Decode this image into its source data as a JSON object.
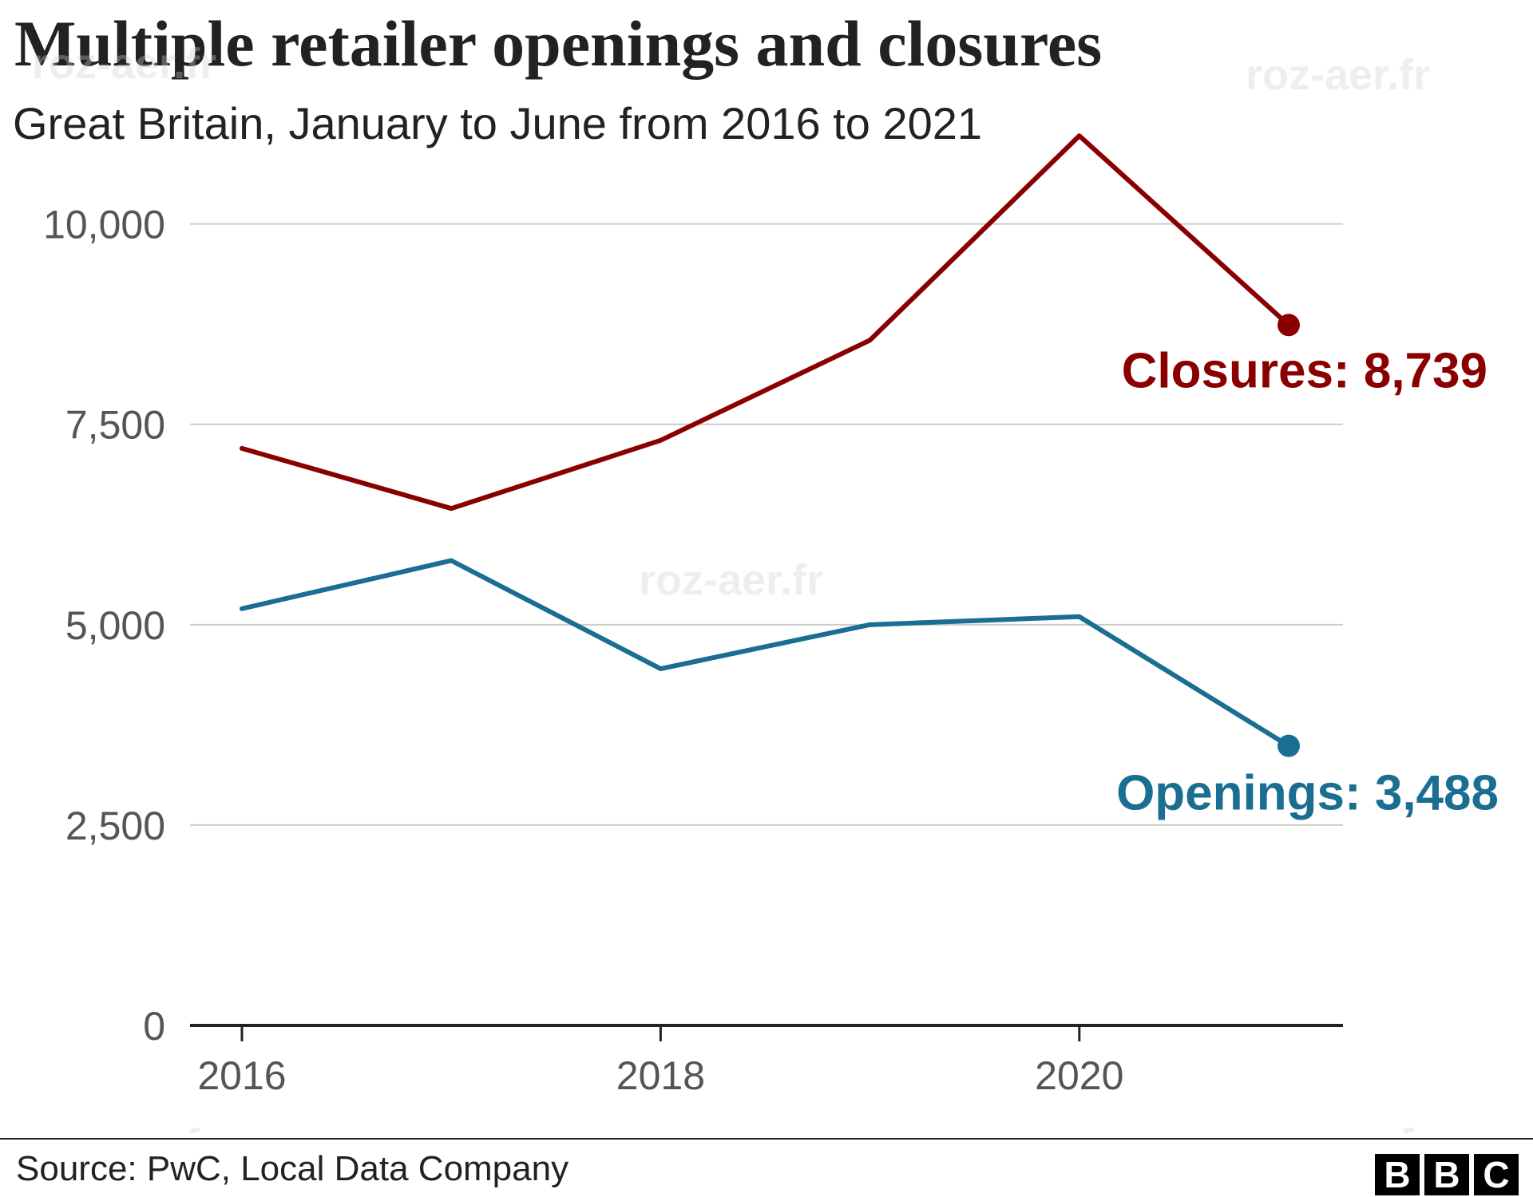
{
  "title": "Multiple retailer openings and closures",
  "subtitle": "Great Britain, January to June from 2016 to 2021",
  "source": "Source: PwC, Local Data Company",
  "logo": [
    "B",
    "B",
    "C"
  ],
  "watermark": "roz-aer.fr",
  "chart_data": {
    "type": "line",
    "x": [
      2016,
      2017,
      2018,
      2019,
      2020,
      2021
    ],
    "xticks": [
      "2016",
      "2018",
      "2020"
    ],
    "yticks": [
      "0",
      "2,500",
      "5,000",
      "7,500",
      "10,000"
    ],
    "ytick_values": [
      0,
      2500,
      5000,
      7500,
      10000
    ],
    "ylim": [
      0,
      11500
    ],
    "xlim": [
      2016,
      2021
    ],
    "grid": true,
    "series": [
      {
        "name": "Closures",
        "color": "#8a0000",
        "values": [
          7200,
          6450,
          7300,
          8550,
          11100,
          8739
        ],
        "end_label": "Closures: 8,739"
      },
      {
        "name": "Openings",
        "color": "#1a6e91",
        "values": [
          5200,
          5800,
          4450,
          5000,
          5100,
          3488
        ],
        "end_label": "Openings: 3,488"
      }
    ]
  }
}
